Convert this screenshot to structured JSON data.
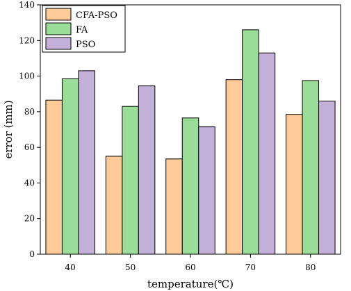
{
  "chart_data": {
    "type": "bar",
    "categories": [
      "40",
      "50",
      "60",
      "70",
      "80"
    ],
    "series": [
      {
        "name": "CFA-PSO",
        "values": [
          86.5,
          55,
          53.5,
          98,
          78.5
        ],
        "color": "#FFCC99"
      },
      {
        "name": "FA",
        "values": [
          98.5,
          83,
          76.5,
          126,
          97.5
        ],
        "color": "#99DD99"
      },
      {
        "name": "PSO",
        "values": [
          103,
          94.5,
          71.5,
          113,
          86
        ],
        "color": "#C4B1DA"
      }
    ],
    "title": "",
    "xlabel": "temperature(℃)",
    "ylabel": "error (mm)",
    "ylim": [
      0,
      140
    ],
    "yticks": [
      0,
      20,
      40,
      60,
      80,
      100,
      120,
      140
    ],
    "grid": false,
    "legend_position": "top-left"
  }
}
